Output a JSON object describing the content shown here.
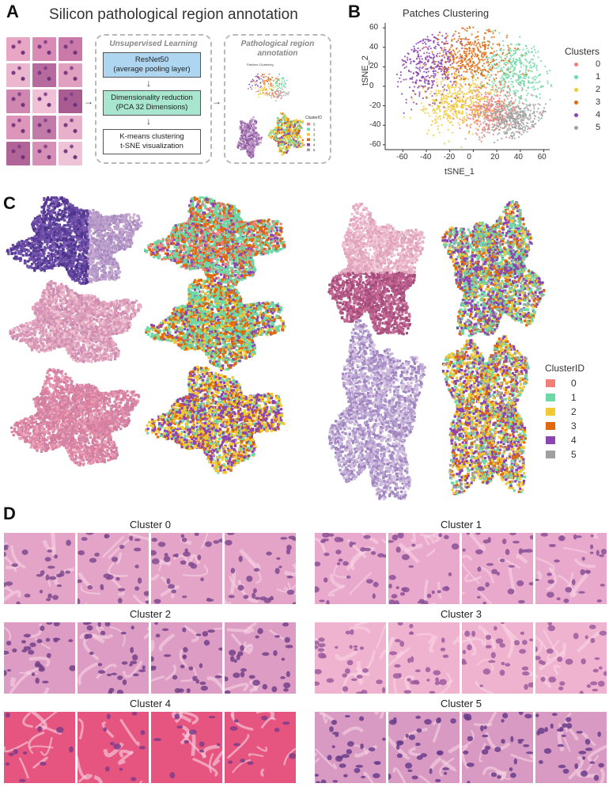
{
  "panel_letters": {
    "a": "A",
    "b": "B",
    "c": "C",
    "d": "D"
  },
  "panel_a": {
    "title": "Silicon pathological region annotation",
    "unsupervised_heading": "Unsupervised Learning",
    "steps": [
      {
        "line1": "ResNet50",
        "line2": "(average pooling layer)",
        "color": "#aed6f1"
      },
      {
        "line1": "Dimensionality reduction",
        "line2": "(PCA 32 Dimensions)",
        "color": "#a8e6cf"
      },
      {
        "line1": "K-means clustering",
        "line2": "t-SNE visualization",
        "color": "#ffffff"
      }
    ],
    "annotation_heading_1": "Pathological region",
    "annotation_heading_2": "annotation",
    "mini_legend_title": "ClusterID",
    "mini_chart_title": "Patches Clustering"
  },
  "cluster_colors": [
    "#f07f78",
    "#6ed8a6",
    "#f0c935",
    "#e0690f",
    "#8b45b0",
    "#a0a0a0"
  ],
  "chart_data": {
    "type": "scatter",
    "title": "Patches Clustering",
    "xlabel": "tSNE_1",
    "ylabel": "tSNE_2",
    "xlim": [
      -75,
      65
    ],
    "ylim": [
      -65,
      65
    ],
    "xticks": [
      "-60",
      "-40",
      "-20",
      "0",
      "20",
      "40",
      "60"
    ],
    "yticks": [
      "60",
      "40",
      "20",
      "0",
      "-20",
      "-40",
      "-60"
    ],
    "xtick_values": [
      -60,
      -40,
      -20,
      0,
      20,
      40,
      60
    ],
    "ytick_values": [
      60,
      40,
      20,
      0,
      -20,
      -40,
      -60
    ],
    "legend_title": "Clusters",
    "legend_placement": "right",
    "legend": [
      "0",
      "1",
      "2",
      "3",
      "4",
      "5"
    ],
    "series": [
      {
        "name": "0",
        "center": [
          15,
          -25
        ],
        "spread": [
          14,
          12
        ]
      },
      {
        "name": "1",
        "center": [
          35,
          15
        ],
        "spread": [
          14,
          18
        ]
      },
      {
        "name": "2",
        "center": [
          -15,
          -15
        ],
        "spread": [
          15,
          15
        ]
      },
      {
        "name": "3",
        "center": [
          0,
          30
        ],
        "spread": [
          16,
          14
        ]
      },
      {
        "name": "4",
        "center": [
          -40,
          25
        ],
        "spread": [
          13,
          20
        ]
      },
      {
        "name": "5",
        "center": [
          35,
          -35
        ],
        "spread": [
          14,
          10
        ]
      }
    ]
  },
  "panel_c": {
    "legend_title": "ClusterID",
    "legend": [
      "0",
      "1",
      "2",
      "3",
      "4",
      "5"
    ]
  },
  "panel_d": {
    "clusters": [
      "Cluster 0",
      "Cluster 1",
      "Cluster 2",
      "Cluster 3",
      "Cluster 4",
      "Cluster 5"
    ]
  }
}
